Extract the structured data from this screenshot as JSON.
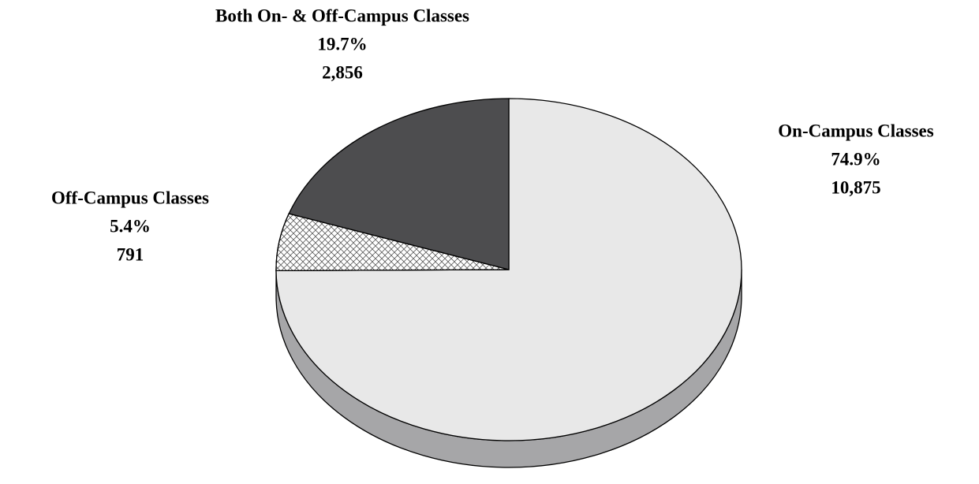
{
  "chart_data": {
    "type": "pie",
    "categories": [
      "On-Campus Classes",
      "Off-Campus Classes",
      "Both On- & Off-Campus Classes"
    ],
    "values": [
      74.9,
      5.4,
      19.7
    ],
    "value_labels": [
      "74.9%",
      "5.4%",
      "19.7%"
    ],
    "counts": [
      10875,
      791,
      2856
    ],
    "count_labels": [
      "10,875",
      "791",
      "2,856"
    ],
    "colors": [
      "#e8e8e8",
      "#ffffff",
      "#4d4d4f"
    ],
    "patterns": [
      null,
      "hatch",
      null
    ],
    "side_color": "#a6a6a8"
  }
}
